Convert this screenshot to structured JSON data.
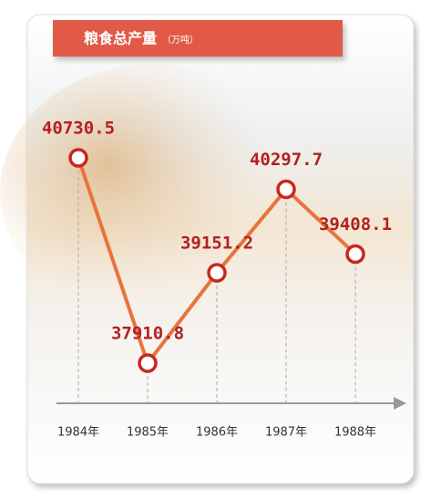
{
  "chart_data": {
    "type": "line",
    "title": "粮食总产量",
    "unit": "（万吨）",
    "categories": [
      "1984年",
      "1985年",
      "1986年",
      "1987年",
      "1988年"
    ],
    "values": [
      40730.5,
      37910.8,
      39151.2,
      40297.7,
      39408.1
    ],
    "color": "#e8743b",
    "marker_color": "#c8271f"
  }
}
